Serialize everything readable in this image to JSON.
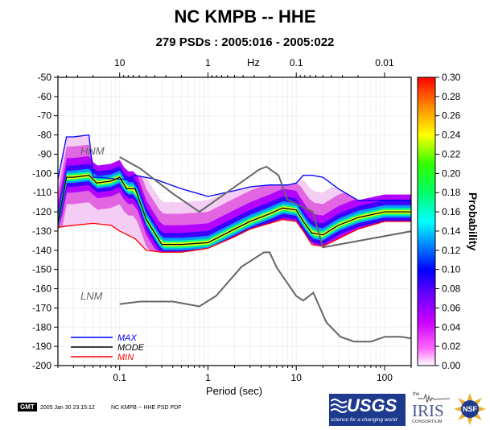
{
  "header": {
    "title": "NC KMPB -- HHE",
    "subtitle": "279 PSDs : 2005:016 - 2005:022"
  },
  "footer": {
    "gmt_badge": "GMT",
    "timestamp": "2005 Jan 30 23:15:12",
    "caption": "NC KMPB -- HHE PSD PDF"
  },
  "logos": {
    "usgs": "USGS",
    "usgs_tagline": "science for a changing world",
    "iris_prefix": "the",
    "iris": "IRIS",
    "iris_sub": "CONSORTIUM",
    "nsf": "NSF"
  },
  "colors": {
    "max": "#0000ff",
    "mode": "#000000",
    "min": "#ff0000",
    "noise_model": "#666666",
    "label_gray": "#666666"
  },
  "chart_data": {
    "type": "heatmap",
    "title": "NC KMPB -- HHE",
    "subtitle": "279 PSDs : 2005:016 - 2005:022",
    "xlabel": "Period (sec)",
    "x_scale": "log",
    "xlim": [
      0.02,
      200
    ],
    "x_ticks": [
      0.1,
      1,
      10,
      100
    ],
    "x_tick_labels": [
      "0.1",
      "1",
      "10",
      "100"
    ],
    "top_axis_label": "Hz",
    "top_ticks": [
      10,
      1,
      0.1,
      0.01
    ],
    "top_tick_labels": [
      "10",
      "1",
      "0.1",
      "0.01"
    ],
    "ylim": [
      -200,
      -50
    ],
    "y_ticks": [
      -200,
      -190,
      -180,
      -170,
      -160,
      -150,
      -140,
      -130,
      -120,
      -110,
      -100,
      -90,
      -80,
      -70,
      -60,
      -50
    ],
    "colorbar": {
      "label": "Probability",
      "range": [
        0,
        0.3
      ],
      "ticks": [
        "0.00",
        "0.02",
        "0.04",
        "0.06",
        "0.08",
        "0.10",
        "0.12",
        "0.14",
        "0.16",
        "0.18",
        "0.20",
        "0.22",
        "0.24",
        "0.26",
        "0.28",
        "0.30"
      ]
    },
    "annotations": [
      "HNM",
      "LNM"
    ],
    "legend": [
      "MAX",
      "MODE",
      "MIN"
    ],
    "legend_placement": "bottom-left",
    "series": [
      {
        "name": "MAX",
        "x": [
          0.02,
          0.025,
          0.03,
          0.045,
          0.05,
          0.06,
          0.09,
          0.12,
          0.15,
          0.25,
          0.5,
          1,
          2,
          3,
          5,
          8,
          10,
          12,
          15,
          20,
          30,
          50,
          100,
          200
        ],
        "y": [
          -103,
          -81,
          -81,
          -80,
          -102,
          -102,
          -103,
          -103,
          -101,
          -103,
          -108,
          -112,
          -109,
          -107,
          -106,
          -106,
          -105,
          -101,
          -101,
          -102,
          -108,
          -114,
          -114,
          -114
        ]
      },
      {
        "name": "MODE",
        "x": [
          0.02,
          0.025,
          0.03,
          0.045,
          0.055,
          0.08,
          0.1,
          0.12,
          0.15,
          0.2,
          0.3,
          0.5,
          1,
          2,
          3,
          5,
          7,
          10,
          12,
          15,
          20,
          30,
          50,
          100,
          200
        ],
        "y": [
          -126,
          -102,
          -102,
          -101,
          -105,
          -104,
          -102,
          -108,
          -108,
          -124,
          -137,
          -137,
          -136,
          -129,
          -125,
          -121,
          -118,
          -119,
          -125,
          -131,
          -132,
          -127,
          -123,
          -120,
          -120
        ]
      },
      {
        "name": "MIN",
        "x": [
          0.02,
          0.03,
          0.05,
          0.08,
          0.1,
          0.15,
          0.2,
          0.3,
          0.5,
          1,
          2,
          3,
          5,
          7,
          10,
          12,
          15,
          20,
          30,
          50,
          100,
          200
        ],
        "y": [
          -128,
          -127,
          -126,
          -127,
          -130,
          -134,
          -140,
          -141,
          -141,
          -139,
          -133,
          -129,
          -126,
          -124,
          -125,
          -130,
          -137,
          -138,
          -134,
          -129,
          -125,
          -125
        ]
      },
      {
        "name": "HNM",
        "x": [
          0.1,
          0.17,
          0.4,
          0.8,
          3.8,
          4.6,
          6.3,
          7.9,
          15.4,
          20,
          354.8
        ],
        "y": [
          -91.5,
          -97.4,
          -110.5,
          -120,
          -98,
          -96.5,
          -101,
          -113.5,
          -120,
          -138.5,
          -128
        ]
      },
      {
        "name": "LNM",
        "x": [
          0.1,
          0.17,
          0.4,
          0.8,
          1.24,
          2.4,
          4.3,
          5,
          6,
          10,
          12,
          15.6,
          21.9,
          31.6,
          45,
          70,
          101,
          154,
          328,
          600
        ],
        "y": [
          -168,
          -166.7,
          -166.7,
          -169.2,
          -163.7,
          -148.6,
          -141.1,
          -141.1,
          -149,
          -163.8,
          -166.2,
          -162.1,
          -177.5,
          -185,
          -187.5,
          -187.5,
          -185,
          -185,
          -187.5,
          -184.4
        ]
      }
    ]
  }
}
